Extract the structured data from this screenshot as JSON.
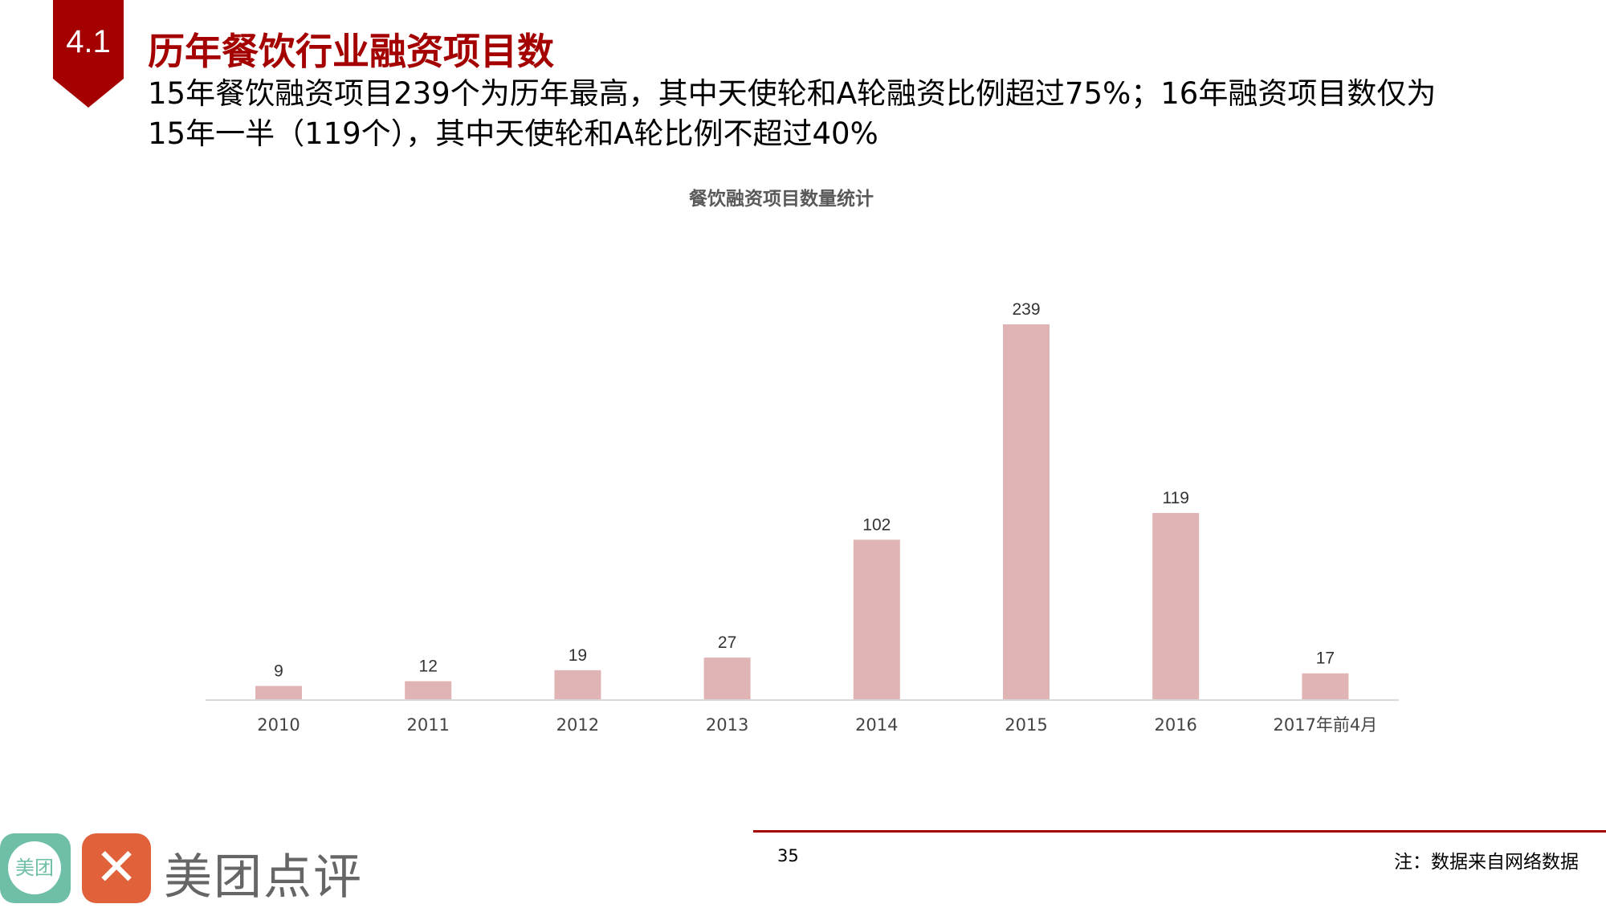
{
  "header": {
    "section": "4.1",
    "title": "历年餐饮行业融资项目数",
    "subtitle": "15年餐饮融资项目239个为历年最高，其中天使轮和A轮融资比例超过75%；16年融资项目数仅为15年一半（119个），其中天使轮和A轮比例不超过40%"
  },
  "colors": {
    "accent": "#a50000",
    "bar": "#e0b4b4"
  },
  "chart_data": {
    "type": "bar",
    "title": "餐饮融资项目数量统计",
    "categories": [
      "2010",
      "2011",
      "2012",
      "2013",
      "2014",
      "2015",
      "2016",
      "2017年前4月"
    ],
    "values": [
      9,
      12,
      19,
      27,
      102,
      239,
      119,
      17
    ],
    "ylim": [
      0,
      239
    ],
    "grid": false,
    "xlabel": "",
    "ylabel": ""
  },
  "footer": {
    "page": "35",
    "note": "注：数据来自网络数据",
    "logo_text": "美团点评",
    "logo_badge": "美团"
  }
}
